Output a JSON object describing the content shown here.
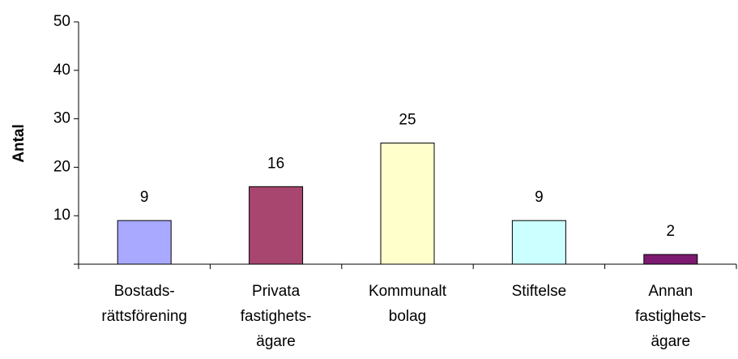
{
  "chart_data": {
    "type": "bar",
    "y_label": "Antal",
    "categories": [
      [
        "Bostads-",
        "rättsförening"
      ],
      [
        "Privata",
        "fastighets-",
        "ägare"
      ],
      [
        "Kommunalt",
        "bolag"
      ],
      [
        "Stiftelse"
      ],
      [
        "Annan",
        "fastighets-",
        "ägare"
      ]
    ],
    "values": [
      9,
      16,
      25,
      9,
      2
    ],
    "colors": [
      "#a9a9ff",
      "#a8466f",
      "#ffffcc",
      "#ccffff",
      "#7b1a70"
    ],
    "ylim": [
      0,
      50
    ],
    "yticks": [
      10,
      20,
      30,
      40,
      50
    ],
    "grid": false
  }
}
